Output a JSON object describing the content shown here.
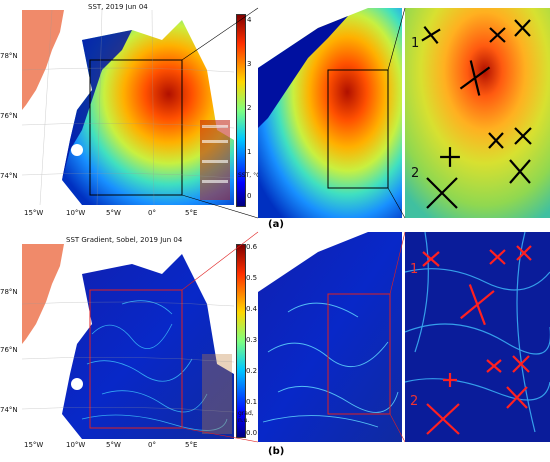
{
  "panel_a": {
    "title": "SST, 2019 Jun 04",
    "lat_ticks": [
      "78°N",
      "76°N",
      "74°N"
    ],
    "lon_ticks": [
      "15°W",
      "10°W",
      "5°W",
      "0°",
      "5°E"
    ],
    "cbar_ticks": [
      "0",
      "1",
      "2",
      "3",
      "4"
    ],
    "cbar_label": "SST, °C",
    "zoom_labels": [
      "1",
      "2"
    ],
    "label": "(a)"
  },
  "panel_b": {
    "title": "SST Gradient, Sobel,  2019 Jun 04",
    "lat_ticks": [
      "78°N",
      "76°N",
      "74°N"
    ],
    "lon_ticks": [
      "15°W",
      "10°W",
      "5°W",
      "0°",
      "5°E"
    ],
    "cbar_ticks": [
      "0.0",
      "0.1",
      "0.2",
      "0.3",
      "0.4",
      "0.5",
      "0.6"
    ],
    "cbar_label": "grad, n.u.",
    "zoom_labels": [
      "1",
      "2"
    ],
    "label": "(b)"
  },
  "colors": {
    "land": "#f08a6a",
    "jet_dark": "#00007f",
    "accent_box_a": "#000000",
    "accent_box_b": "#e02020"
  }
}
